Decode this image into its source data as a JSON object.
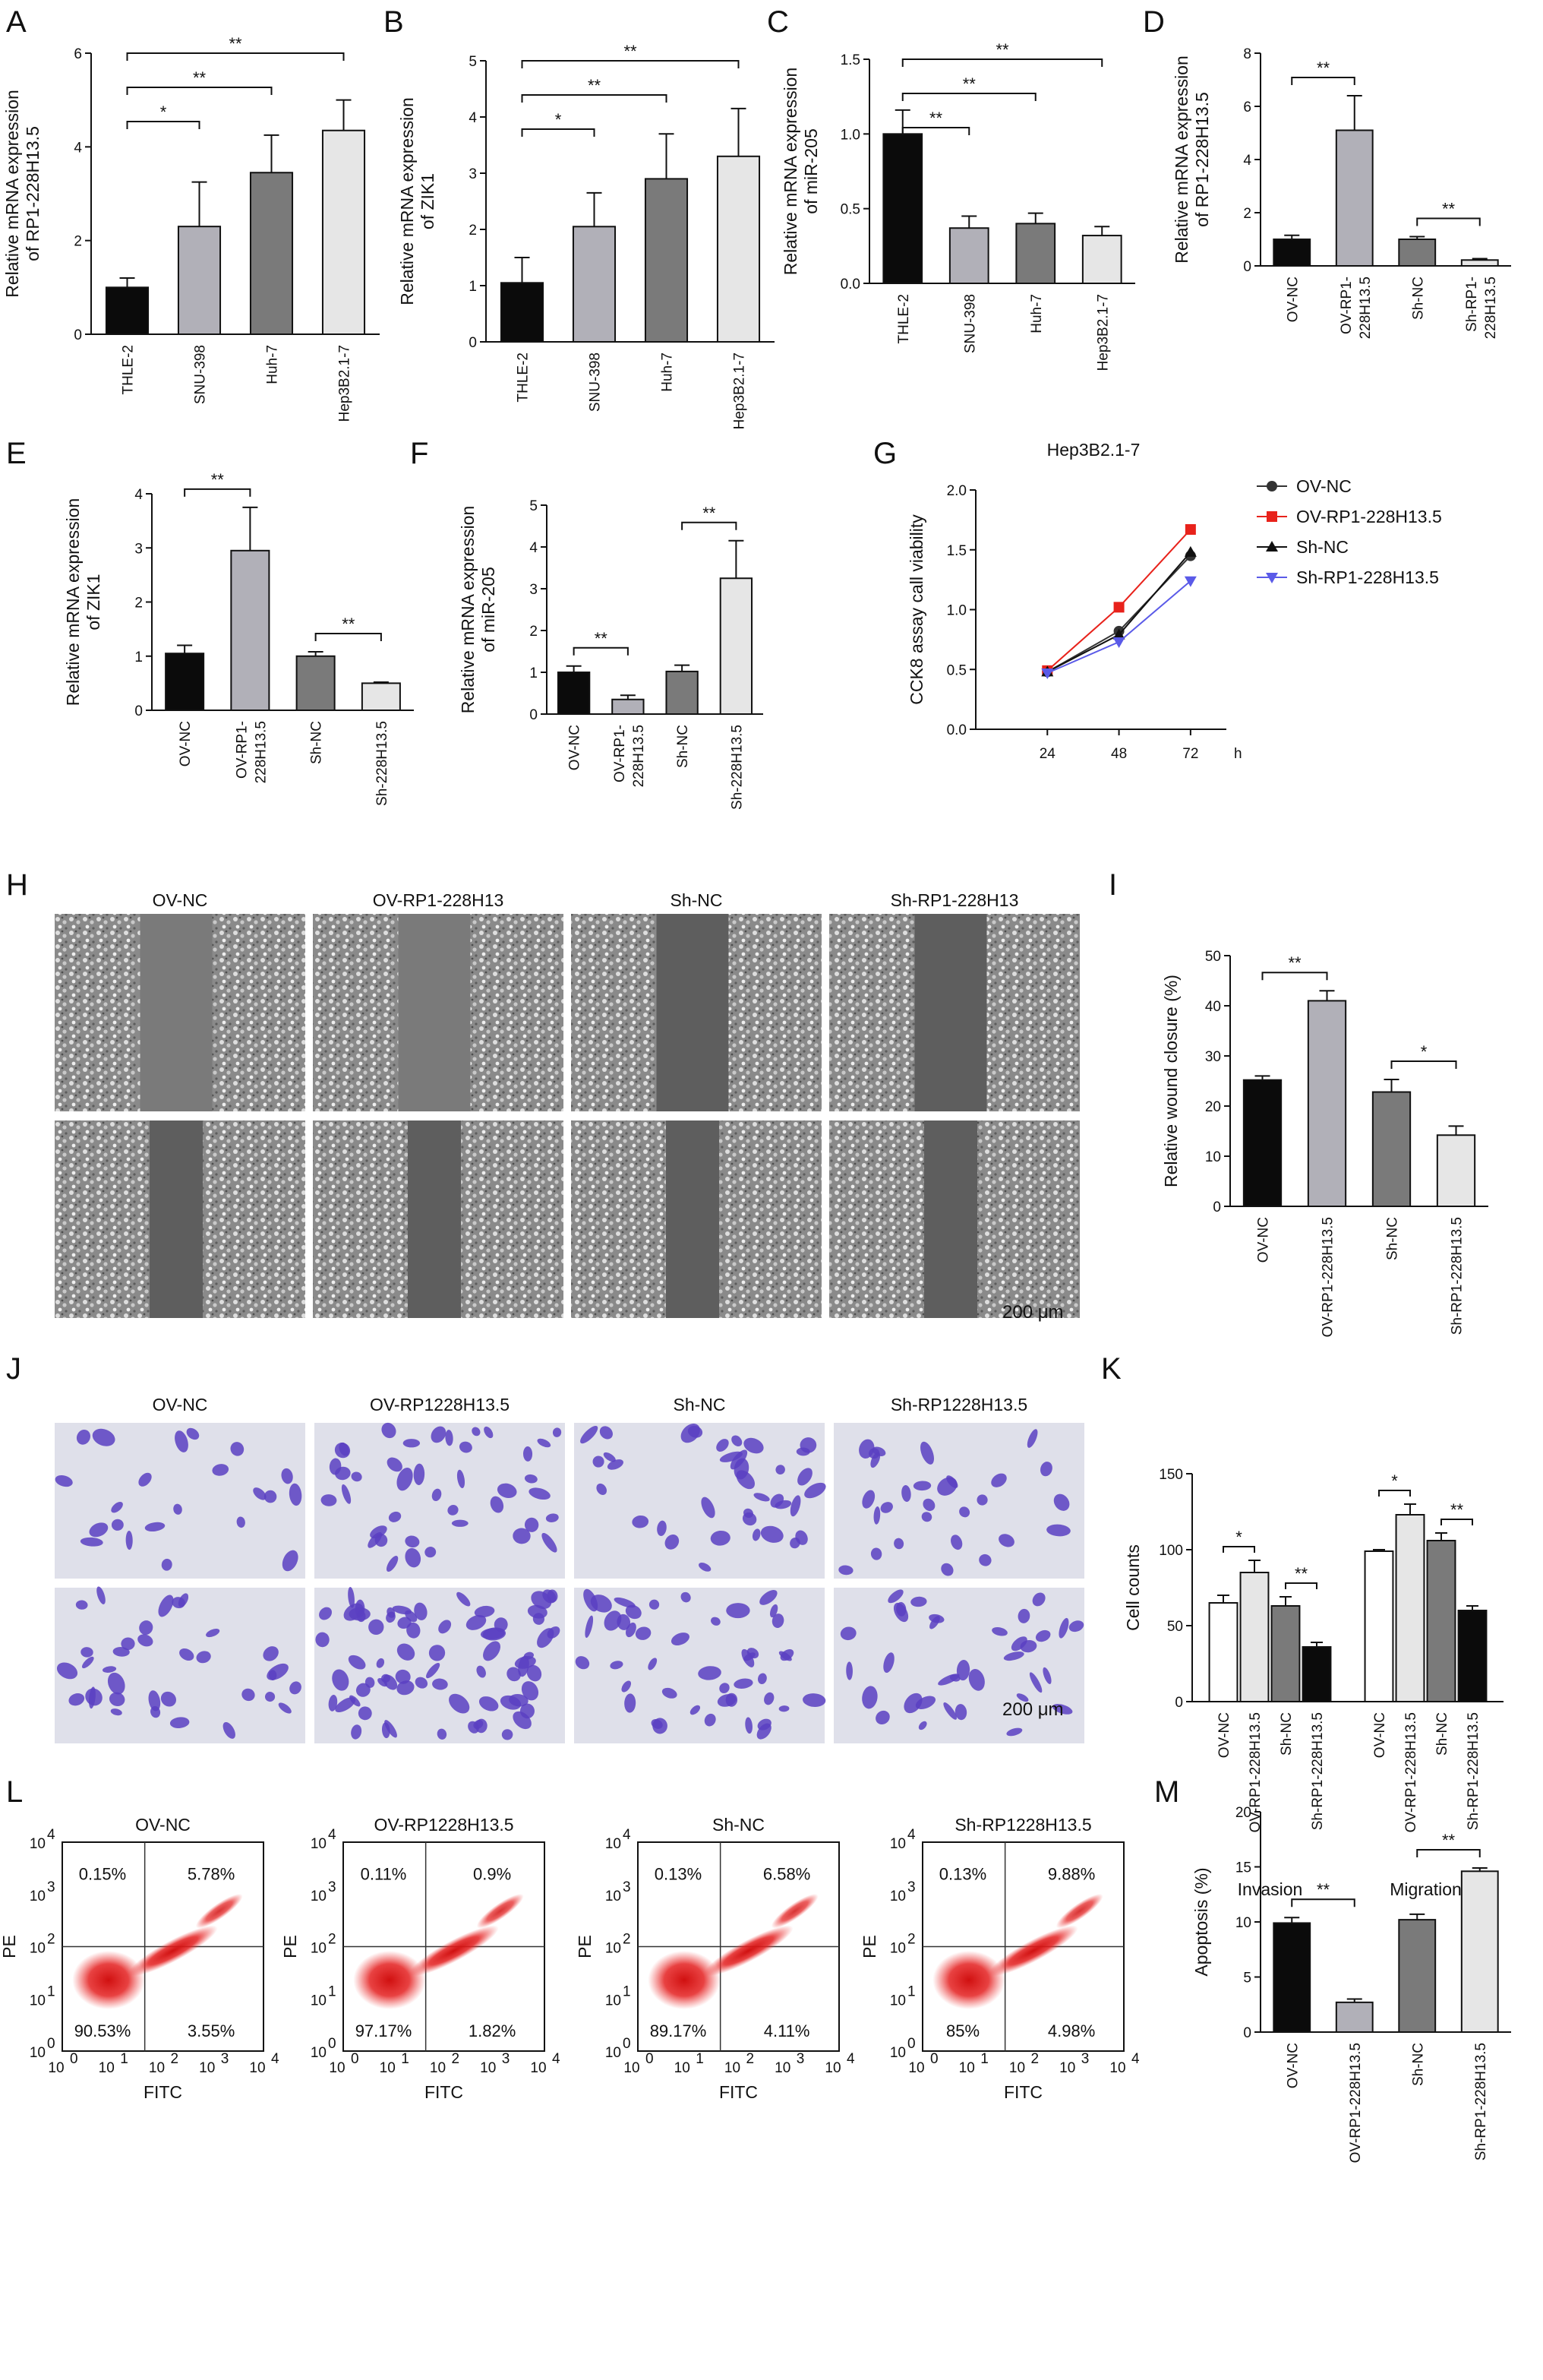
{
  "colors": {
    "black": "#0b0b0b",
    "gray_light": "#b1b0b8",
    "gray_mid": "#7a7a7a",
    "gray_pale": "#e6e6e6",
    "white": "#ffffff",
    "red": "#e8221b",
    "blue": "#5a5ae8",
    "stain": "#5a3fc2"
  },
  "chart_data": [
    {
      "panel": "A",
      "type": "bar",
      "ylabel": "Relative mRNA expression\nof RP1-228H13.5",
      "ylim": [
        0,
        6
      ],
      "yticks": [
        0,
        2,
        4,
        6
      ],
      "categories": [
        "THLE-2",
        "SNU-398",
        "Huh-7",
        "Hep3B2.1-7"
      ],
      "values": [
        1.0,
        2.3,
        3.45,
        4.35
      ],
      "errors": [
        0.2,
        0.95,
        0.8,
        0.65
      ],
      "fills": [
        "#0b0b0b",
        "#b1b0b8",
        "#7a7a7a",
        "#e6e6e6"
      ],
      "significance": [
        {
          "from": 0,
          "to": 1,
          "label": "*"
        },
        {
          "from": 0,
          "to": 2,
          "label": "**"
        },
        {
          "from": 0,
          "to": 3,
          "label": "**"
        }
      ]
    },
    {
      "panel": "B",
      "type": "bar",
      "ylabel": "Relative mRNA expression\nof ZIK1",
      "ylim": [
        0,
        5
      ],
      "yticks": [
        0,
        1,
        2,
        3,
        4,
        5
      ],
      "categories": [
        "THLE-2",
        "SNU-398",
        "Huh-7",
        "Hep3B2.1-7"
      ],
      "values": [
        1.05,
        2.05,
        2.9,
        3.3
      ],
      "errors": [
        0.45,
        0.6,
        0.8,
        0.85
      ],
      "fills": [
        "#0b0b0b",
        "#b1b0b8",
        "#7a7a7a",
        "#e6e6e6"
      ],
      "significance": [
        {
          "from": 0,
          "to": 1,
          "label": "*"
        },
        {
          "from": 0,
          "to": 2,
          "label": "**"
        },
        {
          "from": 0,
          "to": 3,
          "label": "**"
        }
      ]
    },
    {
      "panel": "C",
      "type": "bar",
      "ylabel": "Relative mRNA expression\nof miR-205",
      "ylim": [
        0,
        1.5
      ],
      "yticks": [
        0.0,
        0.5,
        1.0,
        1.5
      ],
      "ytick_labels": [
        "0.0",
        "0.5",
        "1.0",
        "1.5"
      ],
      "categories": [
        "THLE-2",
        "SNU-398",
        "Huh-7",
        "Hep3B2.1-7"
      ],
      "values": [
        1.0,
        0.37,
        0.4,
        0.32
      ],
      "errors": [
        0.16,
        0.08,
        0.07,
        0.06
      ],
      "fills": [
        "#0b0b0b",
        "#b1b0b8",
        "#7a7a7a",
        "#e6e6e6"
      ],
      "significance": [
        {
          "from": 0,
          "to": 1,
          "label": "**"
        },
        {
          "from": 0,
          "to": 2,
          "label": "**"
        },
        {
          "from": 0,
          "to": 3,
          "label": "**"
        }
      ]
    },
    {
      "panel": "D",
      "type": "bar",
      "ylabel": "Relative mRNA expression\nof RP1-228H13.5",
      "ylim": [
        0,
        8
      ],
      "yticks": [
        0,
        2,
        4,
        6,
        8
      ],
      "categories": [
        "OV-NC",
        "OV-RP1-\n228H13.5",
        "Sh-NC",
        "Sh-RP1-\n228H13.5"
      ],
      "values": [
        1.0,
        5.1,
        1.0,
        0.22
      ],
      "errors": [
        0.15,
        1.3,
        0.1,
        0.05
      ],
      "fills": [
        "#0b0b0b",
        "#b1b0b8",
        "#7a7a7a",
        "#e6e6e6"
      ],
      "significance": [
        {
          "from": 0,
          "to": 1,
          "label": "**"
        },
        {
          "from": 2,
          "to": 3,
          "label": "**"
        }
      ]
    },
    {
      "panel": "E",
      "type": "bar",
      "ylabel": "Relative mRNA expression\nof ZIK1",
      "ylim": [
        0,
        4
      ],
      "yticks": [
        0,
        1,
        2,
        3,
        4
      ],
      "categories": [
        "OV-NC",
        "OV-RP1-\n228H13.5",
        "Sh-NC",
        "Sh-228H13.5"
      ],
      "values": [
        1.05,
        2.95,
        1.0,
        0.5
      ],
      "errors": [
        0.15,
        0.8,
        0.08,
        0.02
      ],
      "fills": [
        "#0b0b0b",
        "#b1b0b8",
        "#7a7a7a",
        "#e6e6e6"
      ],
      "significance": [
        {
          "from": 0,
          "to": 1,
          "label": "**"
        },
        {
          "from": 2,
          "to": 3,
          "label": "**"
        }
      ]
    },
    {
      "panel": "F",
      "type": "bar",
      "ylabel": "Relative mRNA expression\nof miR-205",
      "ylim": [
        0,
        5
      ],
      "yticks": [
        0,
        1,
        2,
        3,
        4,
        5
      ],
      "categories": [
        "OV-NC",
        "OV-RP1-\n228H13.5",
        "Sh-NC",
        "Sh-228H13.5"
      ],
      "values": [
        1.0,
        0.35,
        1.02,
        3.25
      ],
      "errors": [
        0.15,
        0.1,
        0.15,
        0.9
      ],
      "fills": [
        "#0b0b0b",
        "#b1b0b8",
        "#7a7a7a",
        "#e6e6e6"
      ],
      "significance": [
        {
          "from": 0,
          "to": 1,
          "label": "**"
        },
        {
          "from": 2,
          "to": 3,
          "label": "**"
        }
      ]
    },
    {
      "panel": "G",
      "type": "line",
      "title": "Hep3B2.1-7",
      "ylabel": "CCK8 assay call viability",
      "xlabel": "h",
      "x": [
        24,
        48,
        72
      ],
      "ylim": [
        0,
        2.0
      ],
      "yticks": [
        0.0,
        0.5,
        1.0,
        1.5,
        2.0
      ],
      "ytick_labels": [
        "0.0",
        "0.5",
        "1.0",
        "1.5",
        "2.0"
      ],
      "series": [
        {
          "name": "OV-NC",
          "values": [
            0.48,
            0.82,
            1.45
          ],
          "color": "#333333",
          "marker": "circle"
        },
        {
          "name": "OV-RP1-228H13.5",
          "values": [
            0.49,
            1.02,
            1.67
          ],
          "color": "#e8221b",
          "marker": "square"
        },
        {
          "name": "Sh-NC",
          "values": [
            0.48,
            0.79,
            1.48
          ],
          "color": "#111111",
          "marker": "triangle-up"
        },
        {
          "name": "Sh-RP1-228H13.5",
          "values": [
            0.47,
            0.73,
            1.24
          ],
          "color": "#5a5ae8",
          "marker": "triangle-down"
        }
      ],
      "legend": "top-right"
    },
    {
      "panel": "I",
      "type": "bar",
      "ylabel": "Relative wound closure (%)",
      "ylim": [
        0,
        50
      ],
      "yticks": [
        0,
        10,
        20,
        30,
        40,
        50
      ],
      "categories": [
        "OV-NC",
        "OV-RP1-228H13.5",
        "Sh-NC",
        "Sh-RP1-228H13.5"
      ],
      "values": [
        25.2,
        41.0,
        22.8,
        14.2
      ],
      "errors": [
        0.8,
        2.0,
        2.5,
        1.8
      ],
      "fills": [
        "#0b0b0b",
        "#b1b0b8",
        "#7a7a7a",
        "#e6e6e6"
      ],
      "significance": [
        {
          "from": 0,
          "to": 1,
          "label": "**"
        },
        {
          "from": 2,
          "to": 3,
          "label": "*"
        }
      ]
    },
    {
      "panel": "K",
      "type": "bar",
      "ylabel": "Cell counts",
      "ylim": [
        0,
        150
      ],
      "yticks": [
        0,
        50,
        100,
        150
      ],
      "categories": [
        "OV-NC",
        "OV-RP1-228H13.5",
        "Sh-NC",
        "Sh-RP1-228H13.5"
      ],
      "groups": [
        "Invasion",
        "Migration"
      ],
      "series": [
        {
          "name": "Invasion",
          "values": [
            65,
            85,
            63,
            36
          ],
          "errors": [
            5,
            8,
            6,
            3
          ]
        },
        {
          "name": "Migration",
          "values": [
            99,
            123,
            106,
            60
          ],
          "errors": [
            1,
            7,
            5,
            3
          ]
        }
      ],
      "fills": [
        "#ffffff",
        "#e6e6e6",
        "#7a7a7a",
        "#0b0b0b"
      ],
      "significance": [
        {
          "group": 0,
          "from": 0,
          "to": 1,
          "label": "*"
        },
        {
          "group": 0,
          "from": 2,
          "to": 3,
          "label": "**"
        },
        {
          "group": 1,
          "from": 0,
          "to": 1,
          "label": "*"
        },
        {
          "group": 1,
          "from": 2,
          "to": 3,
          "label": "**"
        }
      ]
    },
    {
      "panel": "M",
      "type": "bar",
      "ylabel": "Apoptosis (%)",
      "ylim": [
        0,
        20
      ],
      "yticks": [
        0,
        5,
        10,
        15,
        20
      ],
      "categories": [
        "OV-NC",
        "OV-RP1-228H13.5",
        "Sh-NC",
        "Sh-RP1-228H13.5"
      ],
      "values": [
        9.9,
        2.7,
        10.2,
        14.6
      ],
      "errors": [
        0.5,
        0.3,
        0.5,
        0.3
      ],
      "fills": [
        "#0b0b0b",
        "#b1b0b8",
        "#7a7a7a",
        "#e6e6e6"
      ],
      "significance": [
        {
          "from": 0,
          "to": 1,
          "label": "**"
        },
        {
          "from": 2,
          "to": 3,
          "label": "**"
        }
      ]
    }
  ],
  "panel_H": {
    "label": "H",
    "columns": [
      "OV-NC",
      "OV-RP1-228H13",
      "Sh-NC",
      "Sh-RP1-228H13"
    ],
    "scale_bar": "200 μm"
  },
  "panel_J": {
    "label": "J",
    "columns": [
      "OV-NC",
      "OV-RP1228H13.5",
      "Sh-NC",
      "Sh-RP1228H13.5"
    ],
    "scale_bar": "200 μm"
  },
  "panel_K_groups": [
    "Invasion",
    "Migration"
  ],
  "panel_L": {
    "label": "L",
    "xlabel": "FITC",
    "ylabel": "PE",
    "axis_exponents": [
      "0",
      "1",
      "2",
      "3",
      "4"
    ],
    "axis_base": "10",
    "plots": [
      {
        "title": "OV-NC",
        "ul": "0.15%",
        "ur": "5.78%",
        "ll": "90.53%",
        "lr": "3.55%"
      },
      {
        "title": "OV-RP1228H13.5",
        "ul": "0.11%",
        "ur": "0.9%",
        "ll": "97.17%",
        "lr": "1.82%"
      },
      {
        "title": "Sh-NC",
        "ul": "0.13%",
        "ur": "6.58%",
        "ll": "89.17%",
        "lr": "4.11%"
      },
      {
        "title": "Sh-RP1228H13.5",
        "ul": "0.13%",
        "ur": "9.88%",
        "ll": "85%",
        "lr": "4.98%"
      }
    ]
  }
}
